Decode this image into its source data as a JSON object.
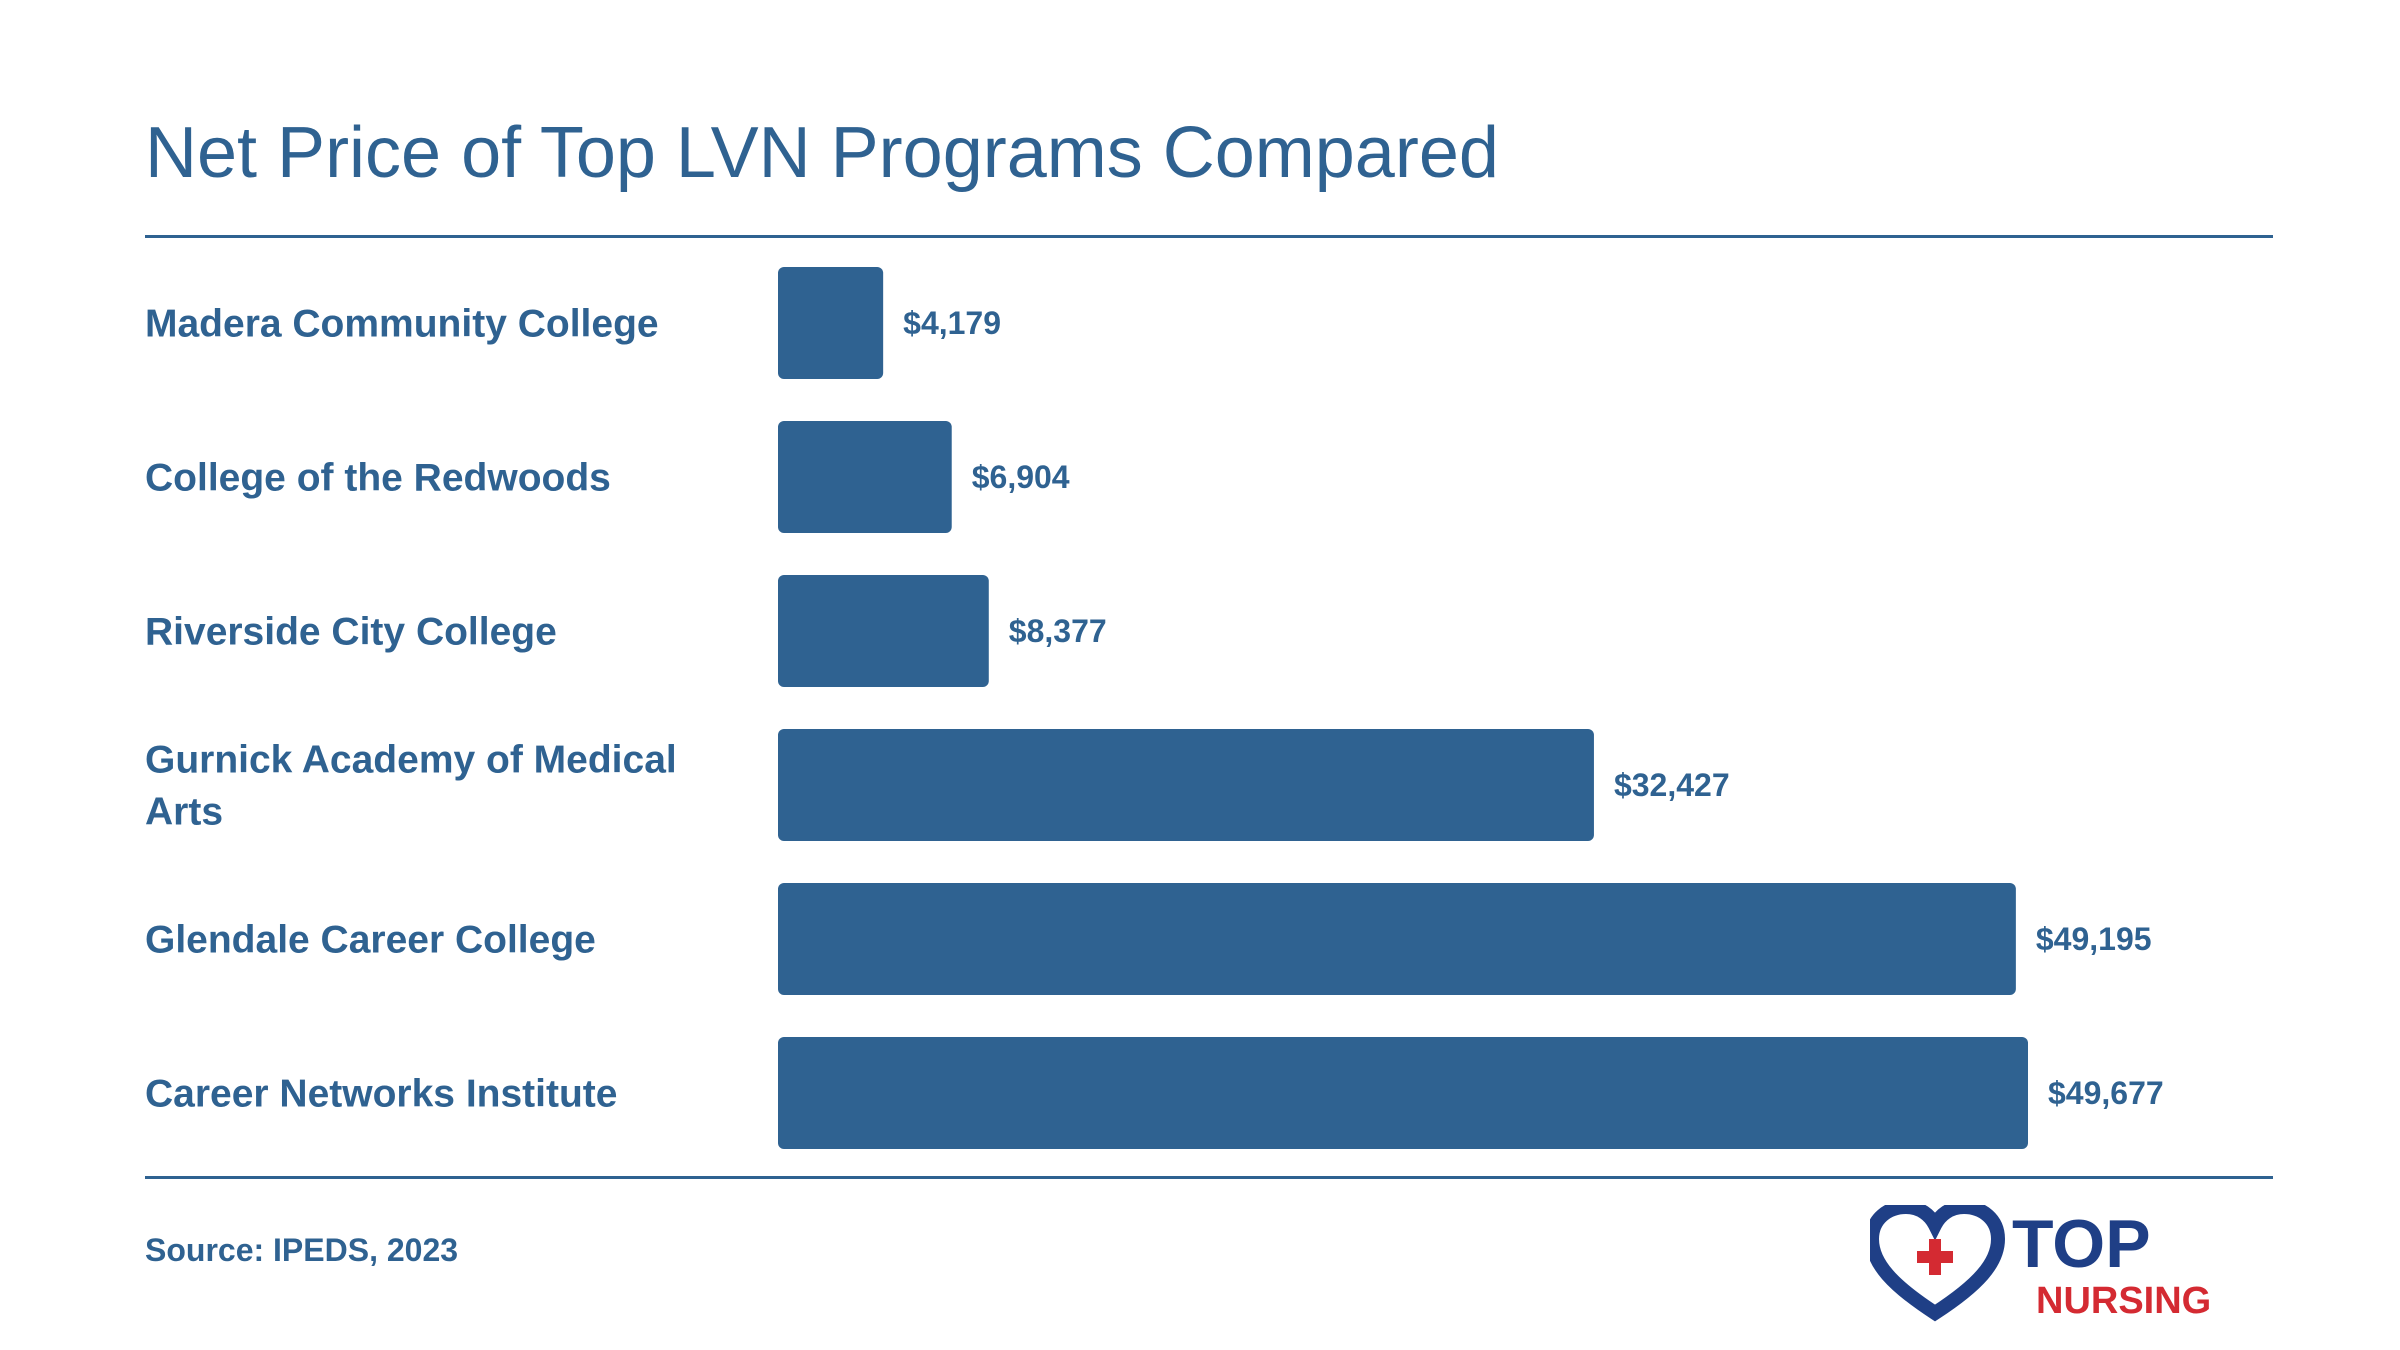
{
  "title": "Net Price of Top LVN Programs Compared",
  "source": "Source: IPEDS, 2023",
  "logo": {
    "line1": "TOP",
    "line2": "NURSING"
  },
  "colors": {
    "bar": "#2f6291",
    "text": "#2f6291",
    "logo_blue": "#1f3f86",
    "logo_red": "#d42a32"
  },
  "chart_data": {
    "type": "bar",
    "orientation": "horizontal",
    "categories": [
      "Madera Community College",
      "College of the Redwoods",
      "Riverside City College",
      "Gurnick Academy of Medical Arts",
      "Glendale Career College",
      "Career Networks Institute"
    ],
    "values": [
      4179,
      6904,
      8377,
      32427,
      49195,
      49677
    ],
    "value_labels": [
      "$4,179",
      "$6,904",
      "$8,377",
      "$32,427",
      "$49,195",
      "$49,677"
    ],
    "xlim": [
      0,
      49677
    ],
    "grid": false,
    "legend": "none"
  }
}
